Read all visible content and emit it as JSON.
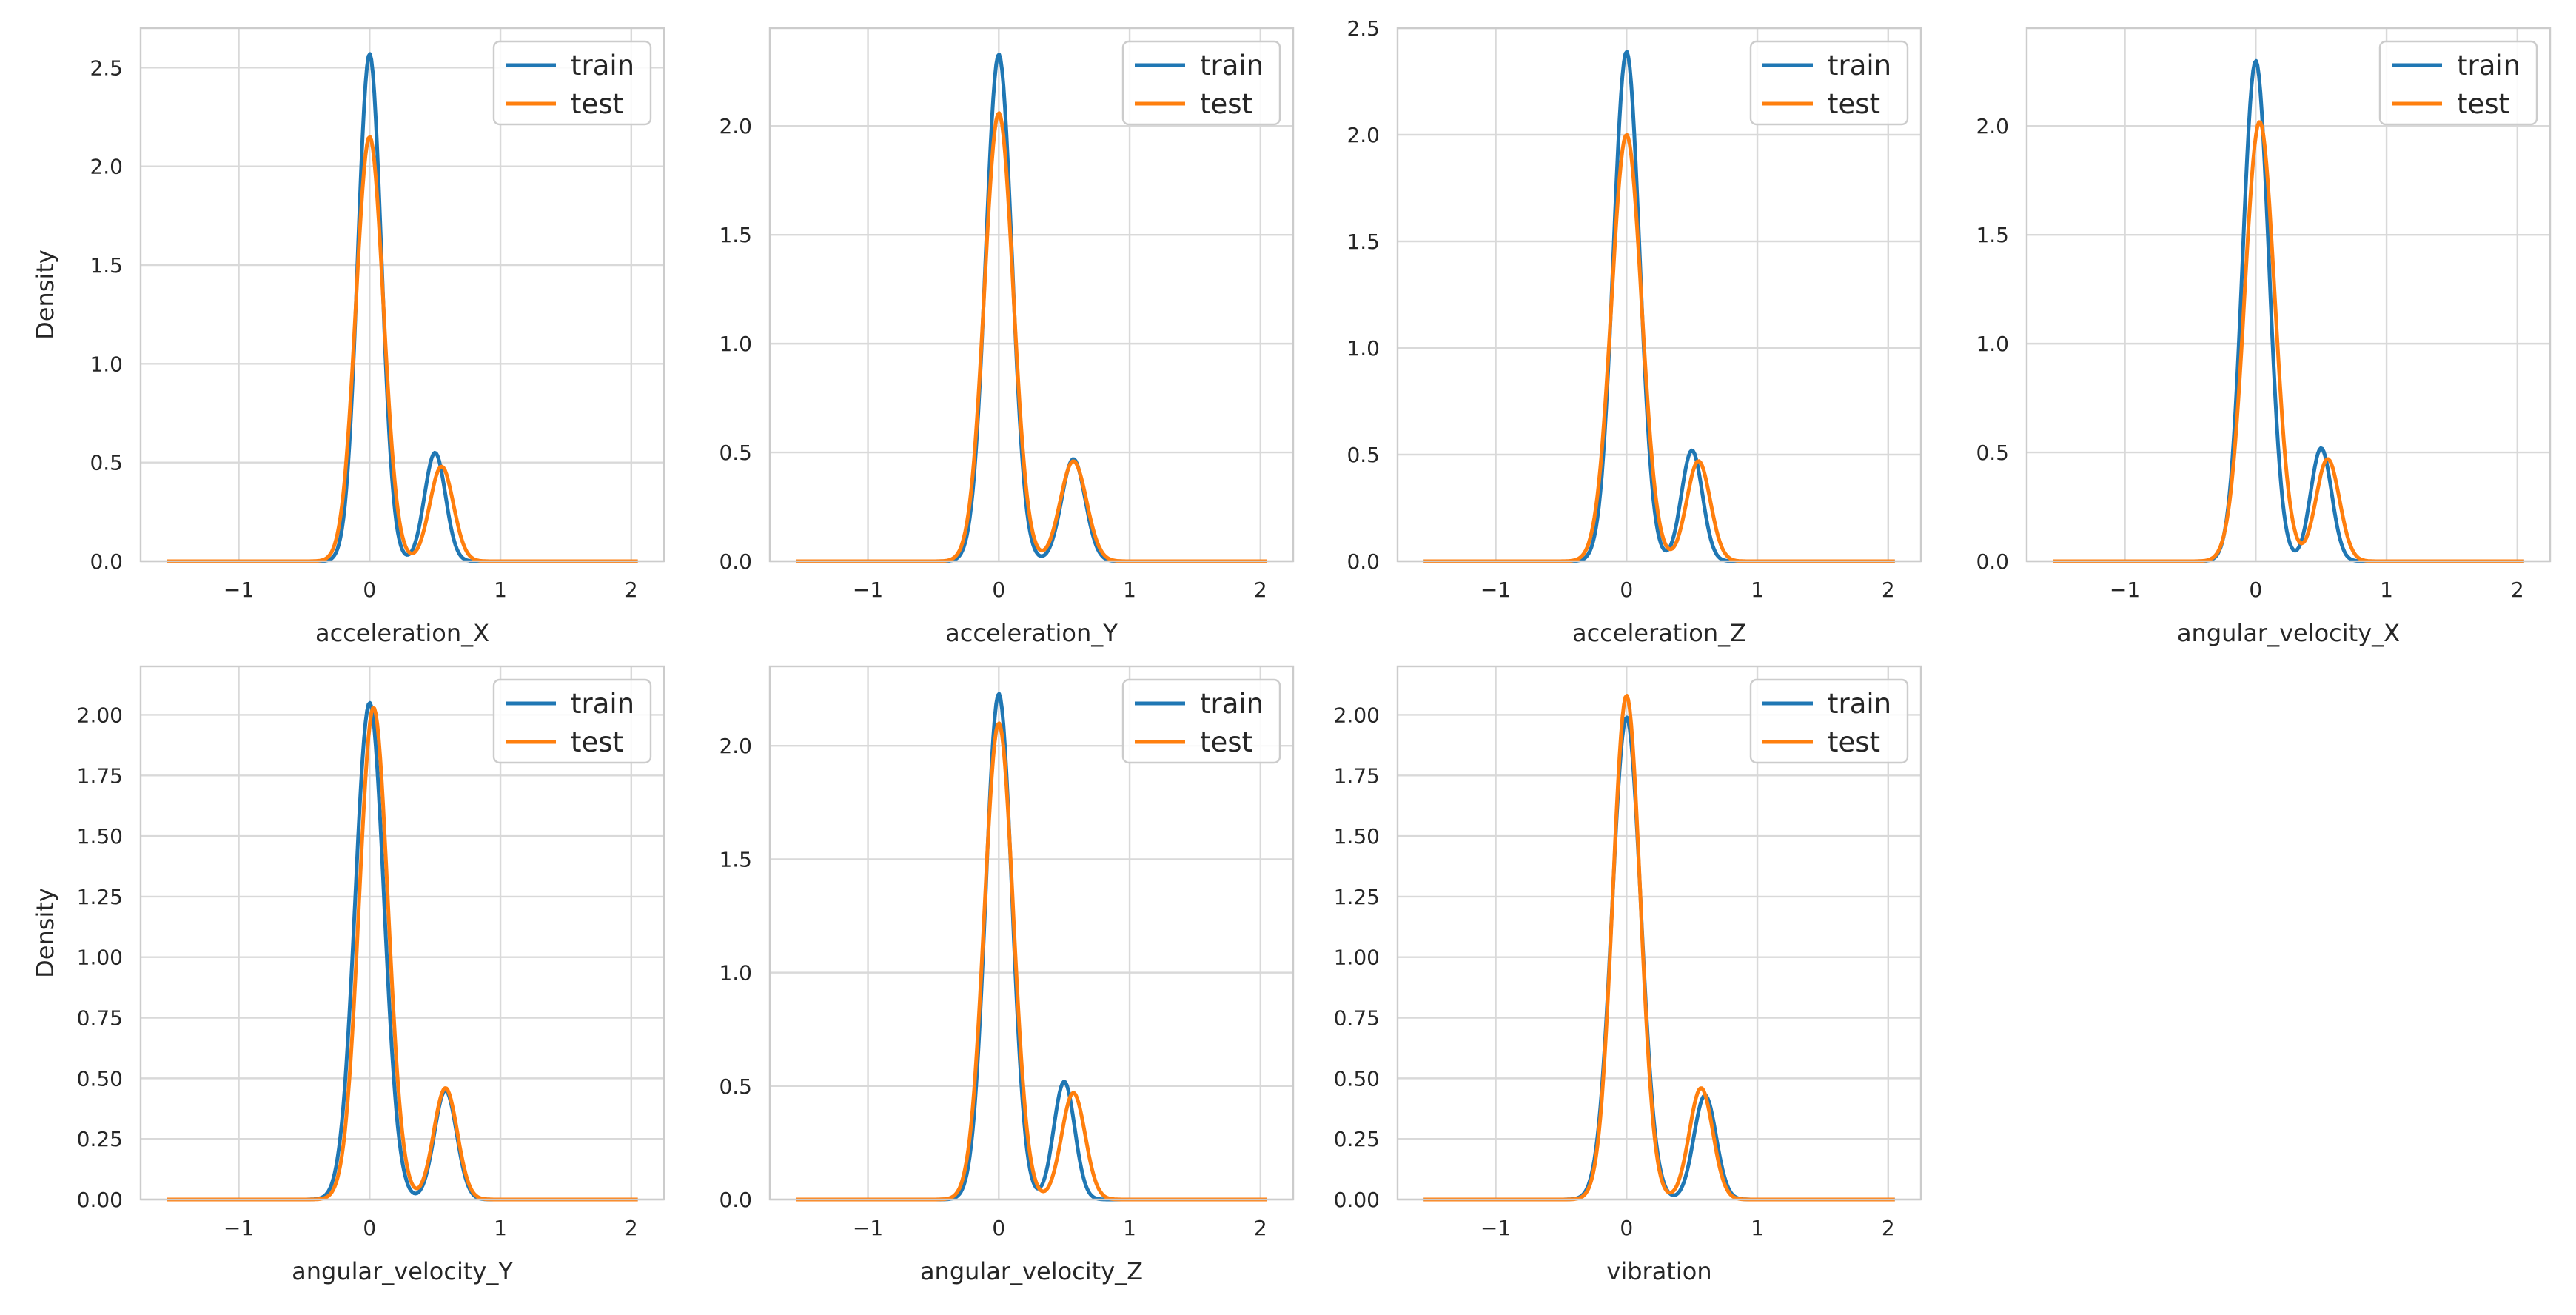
{
  "chart_data": [
    {
      "type": "line",
      "subtype": "kde",
      "xlabel": "acceleration_X",
      "ylabel": "Density",
      "xlim": [
        -1.75,
        2.25
      ],
      "ylim": [
        0,
        2.7
      ],
      "xticks": [
        -1,
        0,
        1,
        2
      ],
      "xtick_labels": [
        "−1",
        "0",
        "1",
        "2"
      ],
      "yticks": [
        0,
        0.5,
        1.0,
        1.5,
        2.0,
        2.5
      ],
      "ytick_labels": [
        "0.0",
        "0.5",
        "1.0",
        "1.5",
        "2.0",
        "2.5"
      ],
      "grid": true,
      "legend_position": "top-right",
      "series": [
        {
          "name": "train",
          "color": "#1f77b4",
          "peak1": {
            "x": 0.0,
            "y": 2.57,
            "sigma": 0.09
          },
          "peak2": {
            "x": 0.5,
            "y": 0.55,
            "sigma": 0.08
          }
        },
        {
          "name": "test",
          "color": "#ff7f0e",
          "peak1": {
            "x": 0.0,
            "y": 2.15,
            "sigma": 0.105
          },
          "peak2": {
            "x": 0.55,
            "y": 0.48,
            "sigma": 0.09
          }
        }
      ]
    },
    {
      "type": "line",
      "subtype": "kde",
      "xlabel": "acceleration_Y",
      "ylabel": "",
      "xlim": [
        -1.75,
        2.25
      ],
      "ylim": [
        0,
        2.45
      ],
      "xticks": [
        -1,
        0,
        1,
        2
      ],
      "xtick_labels": [
        "−1",
        "0",
        "1",
        "2"
      ],
      "yticks": [
        0,
        0.5,
        1.0,
        1.5,
        2.0
      ],
      "ytick_labels": [
        "0.0",
        "0.5",
        "1.0",
        "1.5",
        "2.0"
      ],
      "grid": true,
      "legend_position": "top-right",
      "series": [
        {
          "name": "train",
          "color": "#1f77b4",
          "peak1": {
            "x": 0.0,
            "y": 2.33,
            "sigma": 0.1
          },
          "peak2": {
            "x": 0.57,
            "y": 0.47,
            "sigma": 0.09
          }
        },
        {
          "name": "test",
          "color": "#ff7f0e",
          "peak1": {
            "x": 0.0,
            "y": 2.06,
            "sigma": 0.11
          },
          "peak2": {
            "x": 0.57,
            "y": 0.46,
            "sigma": 0.1
          }
        }
      ]
    },
    {
      "type": "line",
      "subtype": "kde",
      "xlabel": "acceleration_Z",
      "ylabel": "",
      "xlim": [
        -1.75,
        2.25
      ],
      "ylim": [
        0,
        2.5
      ],
      "xticks": [
        -1,
        0,
        1,
        2
      ],
      "xtick_labels": [
        "−1",
        "0",
        "1",
        "2"
      ],
      "yticks": [
        0,
        0.5,
        1.0,
        1.5,
        2.0,
        2.5
      ],
      "ytick_labels": [
        "0.0",
        "0.5",
        "1.0",
        "1.5",
        "2.0",
        "2.5"
      ],
      "grid": true,
      "legend_position": "top-right",
      "series": [
        {
          "name": "train",
          "color": "#1f77b4",
          "peak1": {
            "x": 0.0,
            "y": 2.39,
            "sigma": 0.1
          },
          "peak2": {
            "x": 0.5,
            "y": 0.52,
            "sigma": 0.08
          }
        },
        {
          "name": "test",
          "color": "#ff7f0e",
          "peak1": {
            "x": 0.0,
            "y": 2.0,
            "sigma": 0.115
          },
          "peak2": {
            "x": 0.55,
            "y": 0.47,
            "sigma": 0.09
          }
        }
      ]
    },
    {
      "type": "line",
      "subtype": "kde",
      "xlabel": "angular_velocity_X",
      "ylabel": "",
      "xlim": [
        -1.75,
        2.25
      ],
      "ylim": [
        0,
        2.45
      ],
      "xticks": [
        -1,
        0,
        1,
        2
      ],
      "xtick_labels": [
        "−1",
        "0",
        "1",
        "2"
      ],
      "yticks": [
        0,
        0.5,
        1.0,
        1.5,
        2.0
      ],
      "ytick_labels": [
        "0.0",
        "0.5",
        "1.0",
        "1.5",
        "2.0"
      ],
      "grid": true,
      "legend_position": "top-right",
      "series": [
        {
          "name": "train",
          "color": "#1f77b4",
          "peak1": {
            "x": 0.0,
            "y": 2.3,
            "sigma": 0.1
          },
          "peak2": {
            "x": 0.5,
            "y": 0.52,
            "sigma": 0.08
          }
        },
        {
          "name": "test",
          "color": "#ff7f0e",
          "peak1": {
            "x": 0.03,
            "y": 2.02,
            "sigma": 0.115
          },
          "peak2": {
            "x": 0.55,
            "y": 0.47,
            "sigma": 0.09
          }
        }
      ]
    },
    {
      "type": "line",
      "subtype": "kde",
      "xlabel": "angular_velocity_Y",
      "ylabel": "Density",
      "xlim": [
        -1.75,
        2.25
      ],
      "ylim": [
        0,
        2.2
      ],
      "xticks": [
        -1,
        0,
        1,
        2
      ],
      "xtick_labels": [
        "−1",
        "0",
        "1",
        "2"
      ],
      "yticks": [
        0,
        0.25,
        0.5,
        0.75,
        1.0,
        1.25,
        1.5,
        1.75,
        2.0
      ],
      "ytick_labels": [
        "0.00",
        "0.25",
        "0.50",
        "0.75",
        "1.00",
        "1.25",
        "1.50",
        "1.75",
        "2.00"
      ],
      "grid": true,
      "legend_position": "top-right",
      "series": [
        {
          "name": "train",
          "color": "#1f77b4",
          "peak1": {
            "x": 0.0,
            "y": 2.05,
            "sigma": 0.11
          },
          "peak2": {
            "x": 0.58,
            "y": 0.45,
            "sigma": 0.085
          }
        },
        {
          "name": "test",
          "color": "#ff7f0e",
          "peak1": {
            "x": 0.03,
            "y": 2.03,
            "sigma": 0.11
          },
          "peak2": {
            "x": 0.58,
            "y": 0.46,
            "sigma": 0.09
          }
        }
      ]
    },
    {
      "type": "line",
      "subtype": "kde",
      "xlabel": "angular_velocity_Z",
      "ylabel": "",
      "xlim": [
        -1.75,
        2.25
      ],
      "ylim": [
        0,
        2.35
      ],
      "xticks": [
        -1,
        0,
        1,
        2
      ],
      "xtick_labels": [
        "−1",
        "0",
        "1",
        "2"
      ],
      "yticks": [
        0,
        0.5,
        1.0,
        1.5,
        2.0
      ],
      "ytick_labels": [
        "0.0",
        "0.5",
        "1.0",
        "1.5",
        "2.0"
      ],
      "grid": true,
      "legend_position": "top-right",
      "series": [
        {
          "name": "train",
          "color": "#1f77b4",
          "peak1": {
            "x": 0.0,
            "y": 2.23,
            "sigma": 0.1
          },
          "peak2": {
            "x": 0.5,
            "y": 0.52,
            "sigma": 0.08
          }
        },
        {
          "name": "test",
          "color": "#ff7f0e",
          "peak1": {
            "x": 0.0,
            "y": 2.1,
            "sigma": 0.11
          },
          "peak2": {
            "x": 0.57,
            "y": 0.47,
            "sigma": 0.09
          }
        }
      ]
    },
    {
      "type": "line",
      "subtype": "kde",
      "xlabel": "vibration",
      "ylabel": "",
      "xlim": [
        -1.75,
        2.25
      ],
      "ylim": [
        0,
        2.2
      ],
      "xticks": [
        -1,
        0,
        1,
        2
      ],
      "xtick_labels": [
        "−1",
        "0",
        "1",
        "2"
      ],
      "yticks": [
        0,
        0.25,
        0.5,
        0.75,
        1.0,
        1.25,
        1.5,
        1.75,
        2.0
      ],
      "ytick_labels": [
        "0.00",
        "0.25",
        "0.50",
        "0.75",
        "1.00",
        "1.25",
        "1.50",
        "1.75",
        "2.00"
      ],
      "grid": true,
      "legend_position": "top-right",
      "series": [
        {
          "name": "train",
          "color": "#1f77b4",
          "peak1": {
            "x": 0.0,
            "y": 1.99,
            "sigma": 0.11
          },
          "peak2": {
            "x": 0.6,
            "y": 0.43,
            "sigma": 0.085
          }
        },
        {
          "name": "test",
          "color": "#ff7f0e",
          "peak1": {
            "x": 0.0,
            "y": 2.08,
            "sigma": 0.105
          },
          "peak2": {
            "x": 0.57,
            "y": 0.46,
            "sigma": 0.09
          }
        }
      ]
    }
  ]
}
